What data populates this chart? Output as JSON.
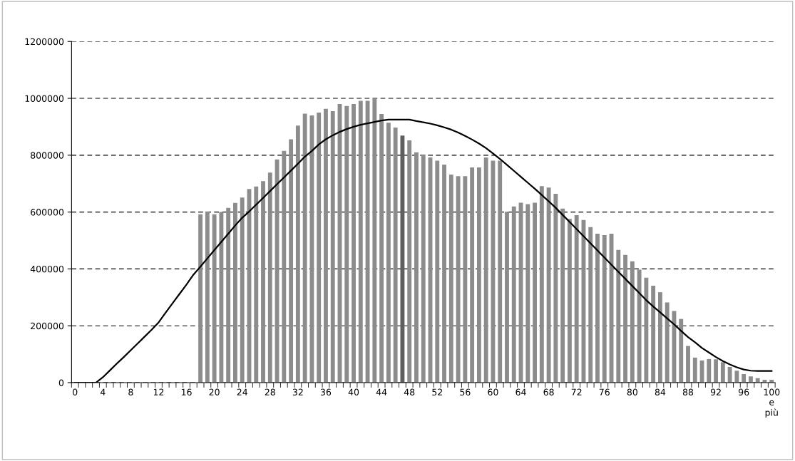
{
  "chart_data": {
    "type": "bar",
    "categories": [
      "0",
      null,
      null,
      null,
      "4",
      null,
      null,
      null,
      "8",
      null,
      null,
      null,
      "12",
      null,
      null,
      null,
      "16",
      null,
      null,
      null,
      "20",
      null,
      null,
      null,
      "24",
      null,
      null,
      null,
      "28",
      null,
      null,
      null,
      "32",
      null,
      null,
      null,
      "36",
      null,
      null,
      null,
      "40",
      null,
      null,
      null,
      "44",
      null,
      null,
      null,
      "48",
      null,
      null,
      null,
      "52",
      null,
      null,
      null,
      "56",
      null,
      null,
      null,
      "60",
      null,
      null,
      null,
      "64",
      null,
      null,
      null,
      "68",
      null,
      null,
      null,
      "72",
      null,
      null,
      null,
      "76",
      null,
      null,
      null,
      "80",
      null,
      null,
      null,
      "84",
      null,
      null,
      null,
      "88",
      null,
      null,
      null,
      "92",
      null,
      null,
      null,
      "96",
      null,
      null,
      null,
      "100\ne\npiù"
    ],
    "series": [
      {
        "colors": [
          "#8c8c8c",
          "#8c8c8c",
          "#8c8c8c",
          "#8c8c8c",
          "#8c8c8c",
          "#8c8c8c",
          "#8c8c8c",
          "#8c8c8c",
          "#8c8c8c",
          "#8c8c8c",
          "#8c8c8c",
          "#8c8c8c",
          "#8c8c8c",
          "#8c8c8c",
          "#8c8c8c",
          "#8c8c8c",
          "#8c8c8c",
          "#8c8c8c",
          "#8c8c8c",
          "#8c8c8c",
          "#8c8c8c",
          "#8c8c8c",
          "#8c8c8c",
          "#8c8c8c",
          "#8c8c8c",
          "#8c8c8c",
          "#8c8c8c",
          "#8c8c8c",
          "#8c8c8c",
          "#8c8c8c",
          "#8c8c8c",
          "#8c8c8c",
          "#8c8c8c",
          "#8c8c8c",
          "#8c8c8c",
          "#8c8c8c",
          "#8c8c8c",
          "#8c8c8c",
          "#8c8c8c",
          "#8c8c8c",
          "#8c8c8c",
          "#8c8c8c",
          "#8c8c8c",
          "#8c8c8c",
          "#8c8c8c",
          "#8c8c8c",
          "#8c8c8c",
          "#5f5f5f",
          "#8c8c8c",
          "#8c8c8c",
          "#8c8c8c",
          "#8c8c8c",
          "#8c8c8c",
          "#8c8c8c",
          "#8c8c8c",
          "#8c8c8c",
          "#8c8c8c",
          "#8c8c8c",
          "#8c8c8c",
          "#8c8c8c",
          "#8c8c8c",
          "#8c8c8c",
          "#8c8c8c",
          "#8c8c8c",
          "#8c8c8c",
          "#8c8c8c",
          "#8c8c8c",
          "#8c8c8c",
          "#8c8c8c",
          "#8c8c8c",
          "#8c8c8c",
          "#8c8c8c",
          "#8c8c8c",
          "#8c8c8c",
          "#8c8c8c",
          "#8c8c8c",
          "#8c8c8c",
          "#8c8c8c",
          "#8c8c8c",
          "#8c8c8c",
          "#8c8c8c",
          "#8c8c8c",
          "#8c8c8c",
          "#8c8c8c",
          "#8c8c8c",
          "#8c8c8c",
          "#8c8c8c",
          "#8c8c8c",
          "#8c8c8c",
          "#8c8c8c",
          "#8c8c8c",
          "#8c8c8c",
          "#8c8c8c",
          "#8c8c8c",
          "#8c8c8c",
          "#8c8c8c",
          "#8c8c8c",
          "#8c8c8c",
          "#8c8c8c",
          "#8c8c8c",
          "#8c8c8c"
        ],
        "values": [
          0,
          0,
          0,
          0,
          0,
          0,
          0,
          0,
          0,
          0,
          0,
          0,
          0,
          0,
          0,
          0,
          0,
          0,
          592000,
          602000,
          592000,
          600000,
          615000,
          632000,
          651000,
          681000,
          690000,
          709000,
          739000,
          785000,
          815000,
          856000,
          904000,
          946000,
          940000,
          950000,
          963000,
          955000,
          980000,
          973000,
          980000,
          991000,
          991000,
          1000000,
          945000,
          914000,
          897000,
          869000,
          852000,
          810000,
          803000,
          792000,
          781000,
          767000,
          732000,
          726000,
          726000,
          757000,
          757000,
          792000,
          781000,
          781000,
          601000,
          620000,
          633000,
          628000,
          633000,
          691000,
          686000,
          664000,
          612000,
          576000,
          589000,
          572000,
          547000,
          524000,
          519000,
          524000,
          467000,
          449000,
          427000,
          397000,
          369000,
          341000,
          318000,
          282000,
          252000,
          224000,
          129000,
          88000,
          78000,
          83000,
          82000,
          72000,
          55000,
          42000,
          30000,
          22000,
          16000,
          10000,
          10000
        ]
      },
      {
        "type": "line",
        "color": "#000000",
        "values": [
          0,
          0,
          0,
          0,
          19000,
          43000,
          67000,
          90000,
          114000,
          138000,
          162000,
          186000,
          212000,
          246000,
          279000,
          312000,
          345000,
          380000,
          408000,
          437000,
          466000,
          495000,
          524000,
          553000,
          580000,
          602000,
          626000,
          650000,
          674000,
          698000,
          722000,
          746000,
          770000,
          795000,
          815000,
          838000,
          856000,
          870000,
          882000,
          892000,
          900000,
          907000,
          912000,
          917000,
          922000,
          925000,
          925000,
          925000,
          925000,
          920000,
          916000,
          911000,
          905000,
          898000,
          890000,
          880000,
          868000,
          855000,
          841000,
          825000,
          806000,
          787000,
          766000,
          745000,
          724000,
          703000,
          682000,
          660000,
          638000,
          615000,
          590000,
          565000,
          540000,
          515000,
          490000,
          465000,
          440000,
          415000,
          390000,
          365000,
          340000,
          315000,
          290000,
          268000,
          247000,
          226000,
          205000,
          182000,
          160000,
          142000,
          122000,
          106000,
          90000,
          76000,
          64000,
          54000,
          46000,
          42000,
          41000,
          41000,
          41000
        ]
      }
    ],
    "ylim": [
      0,
      1200000
    ],
    "yticks": [
      0,
      200000,
      400000,
      600000,
      800000,
      1000000,
      1200000
    ],
    "grid": "y"
  }
}
